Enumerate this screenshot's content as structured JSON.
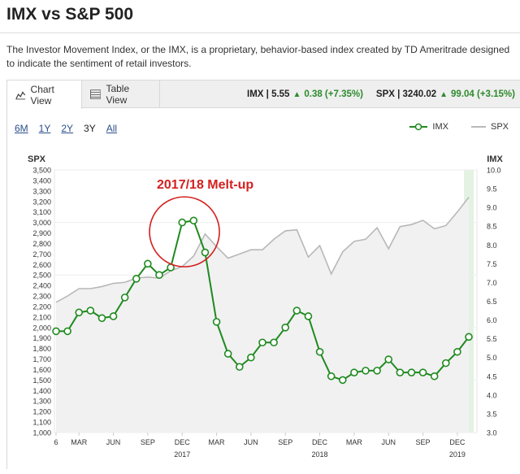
{
  "page": {
    "title": "IMX vs S&P 500",
    "description": "The Investor Movement Index, or the IMX, is a proprietary, behavior-based index created by TD Ameritrade designed to indicate the sentiment of retail investors."
  },
  "tabs": [
    {
      "label": "Chart View",
      "icon": "chart-icon",
      "active": true
    },
    {
      "label": "Table View",
      "icon": "table-icon",
      "active": false
    }
  ],
  "quotes": {
    "imx_label": "IMX | 5.55",
    "imx_change": "0.38 (+7.35%)",
    "spx_label": "SPX | 3240.02",
    "spx_change": "99.04 (+3.15%)"
  },
  "ranges": [
    {
      "label": "6M",
      "selected": false
    },
    {
      "label": "1Y",
      "selected": false
    },
    {
      "label": "2Y",
      "selected": false
    },
    {
      "label": "3Y",
      "selected": true
    },
    {
      "label": "All",
      "selected": false
    }
  ],
  "legend": {
    "imx": "IMX",
    "spx": "SPX"
  },
  "colors": {
    "imx": "#1f8a1f",
    "spx": "#b8b8b8",
    "annotation": "#d42020",
    "up": "#2d8a2d",
    "highlight": "#e3f2e3"
  },
  "chart_data": {
    "type": "line",
    "annotation": "2017/18 Melt-up",
    "left_axis": {
      "label": "SPX",
      "min": 1000,
      "max": 3500,
      "step": 100
    },
    "right_axis": {
      "label": "IMX",
      "min": 3.0,
      "max": 10.0,
      "step": 0.5
    },
    "x_ticks": [
      {
        "label": "6",
        "pos": 0
      },
      {
        "label": "MAR",
        "pos": 2
      },
      {
        "label": "JUN",
        "pos": 5
      },
      {
        "label": "SEP",
        "pos": 8
      },
      {
        "label": "DEC",
        "pos": 11
      },
      {
        "label": "MAR",
        "pos": 14
      },
      {
        "label": "JUN",
        "pos": 17
      },
      {
        "label": "SEP",
        "pos": 20
      },
      {
        "label": "DEC",
        "pos": 23
      },
      {
        "label": "MAR",
        "pos": 26
      },
      {
        "label": "JUN",
        "pos": 29
      },
      {
        "label": "SEP",
        "pos": 32
      },
      {
        "label": "DEC",
        "pos": 35
      }
    ],
    "year_labels": [
      {
        "label": "2017",
        "pos": 11
      },
      {
        "label": "2018",
        "pos": 23
      },
      {
        "label": "2019",
        "pos": 35
      }
    ],
    "series": [
      {
        "name": "IMX",
        "axis": "right",
        "values": [
          5.7,
          5.7,
          6.2,
          6.25,
          6.05,
          6.1,
          6.6,
          7.1,
          7.5,
          7.2,
          7.4,
          8.6,
          8.65,
          7.8,
          5.95,
          5.1,
          4.75,
          5.0,
          5.4,
          5.4,
          5.8,
          6.25,
          6.1,
          5.15,
          4.5,
          4.4,
          4.6,
          4.65,
          4.65,
          4.95,
          4.6,
          4.6,
          4.6,
          4.5,
          4.85,
          5.15,
          5.55
        ]
      },
      {
        "name": "SPX",
        "axis": "left",
        "values": [
          2240,
          2300,
          2370,
          2370,
          2390,
          2420,
          2430,
          2470,
          2480,
          2470,
          2540,
          2580,
          2680,
          2890,
          2770,
          2660,
          2700,
          2740,
          2740,
          2840,
          2920,
          2930,
          2670,
          2780,
          2510,
          2720,
          2820,
          2840,
          2950,
          2750,
          2960,
          2980,
          3020,
          2940,
          2970,
          3100,
          3240
        ]
      }
    ]
  }
}
